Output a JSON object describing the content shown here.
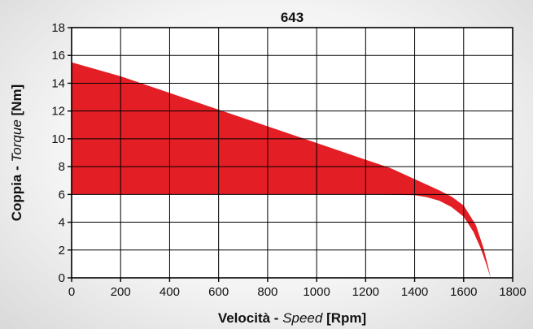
{
  "chart_data": {
    "type": "area",
    "title": "643",
    "xlabel": {
      "part1": "Velocità - ",
      "part2": "Speed",
      "part3": " [Rpm]"
    },
    "ylabel": {
      "part1": "Coppia - ",
      "part2": "Torque",
      "part3": " [Nm]"
    },
    "xlim": [
      0,
      1800
    ],
    "ylim": [
      0,
      18
    ],
    "x_ticks": [
      0,
      200,
      400,
      600,
      800,
      1000,
      1200,
      1400,
      1600,
      1800
    ],
    "y_ticks": [
      0,
      2,
      4,
      6,
      8,
      10,
      12,
      14,
      16,
      18
    ],
    "grid": true,
    "fill_color": "#e31e24",
    "series": [
      {
        "points": [
          [
            0,
            15.5
          ],
          [
            200,
            14.5
          ],
          [
            400,
            13.3
          ],
          [
            600,
            12.1
          ],
          [
            800,
            10.9
          ],
          [
            1000,
            9.7
          ],
          [
            1200,
            8.5
          ],
          [
            1300,
            7.9
          ],
          [
            1400,
            7.1
          ],
          [
            1500,
            6.3
          ],
          [
            1550,
            5.85
          ],
          [
            1600,
            5.2
          ],
          [
            1650,
            3.8
          ],
          [
            1680,
            2.2
          ],
          [
            1700,
            0.8
          ],
          [
            1710,
            0
          ]
        ]
      },
      {
        "points": [
          [
            0,
            6
          ],
          [
            200,
            6
          ],
          [
            400,
            6
          ],
          [
            600,
            6
          ],
          [
            800,
            6
          ],
          [
            1000,
            6
          ],
          [
            1200,
            6
          ],
          [
            1400,
            5.95
          ],
          [
            1450,
            5.8
          ],
          [
            1500,
            5.55
          ],
          [
            1550,
            5.1
          ],
          [
            1600,
            4.4
          ],
          [
            1640,
            3.3
          ],
          [
            1670,
            2.1
          ],
          [
            1690,
            1.1
          ],
          [
            1710,
            0
          ]
        ]
      }
    ]
  }
}
